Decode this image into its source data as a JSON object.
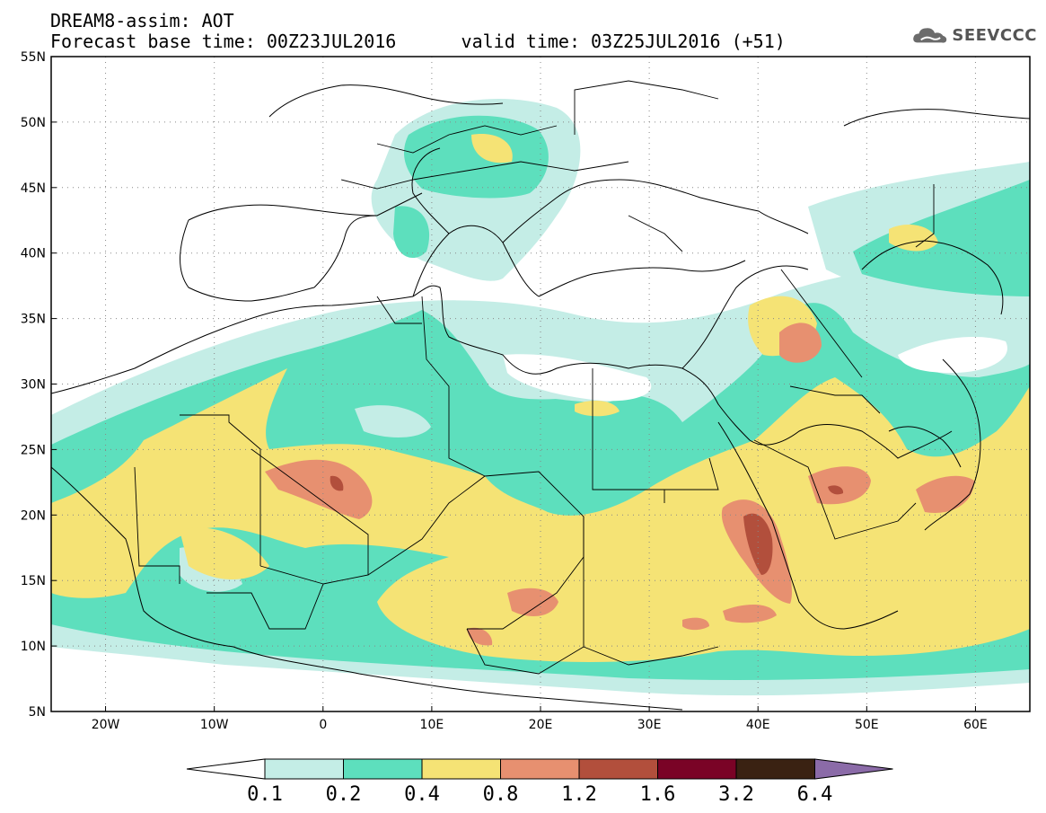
{
  "title": {
    "line1": "DREAM8-assim: AOT",
    "line2": "Forecast base time: 00Z23JUL2016      valid time: 03Z25JUL2016 (+51)"
  },
  "logo": {
    "text": "SEEVCCC",
    "icon": "cloud-icon"
  },
  "map": {
    "lon_range": [
      -25,
      65
    ],
    "lat_range": [
      5,
      55
    ],
    "lon_ticks": [
      {
        "value": -20,
        "label": "20W"
      },
      {
        "value": -10,
        "label": "10W"
      },
      {
        "value": 0,
        "label": "0"
      },
      {
        "value": 10,
        "label": "10E"
      },
      {
        "value": 20,
        "label": "20E"
      },
      {
        "value": 30,
        "label": "30E"
      },
      {
        "value": 40,
        "label": "40E"
      },
      {
        "value": 50,
        "label": "50E"
      },
      {
        "value": 60,
        "label": "60E"
      }
    ],
    "lat_ticks": [
      {
        "value": 5,
        "label": "5N"
      },
      {
        "value": 10,
        "label": "10N"
      },
      {
        "value": 15,
        "label": "15N"
      },
      {
        "value": 20,
        "label": "20N"
      },
      {
        "value": 25,
        "label": "25N"
      },
      {
        "value": 30,
        "label": "30N"
      },
      {
        "value": 35,
        "label": "35N"
      },
      {
        "value": 40,
        "label": "40N"
      },
      {
        "value": 45,
        "label": "45N"
      },
      {
        "value": 50,
        "label": "50N"
      },
      {
        "value": 55,
        "label": "55N"
      }
    ],
    "grid": "dotted"
  },
  "colorbar": {
    "levels": [
      "0.1",
      "0.2",
      "0.4",
      "0.8",
      "1.2",
      "1.6",
      "3.2",
      "6.4"
    ],
    "colors": [
      "#ffffff",
      "#c4ede6",
      "#5ddfbd",
      "#f5e375",
      "#e79070",
      "#b24f3c",
      "#7a0326",
      "#3a2212",
      "#8b6ba8"
    ]
  }
}
